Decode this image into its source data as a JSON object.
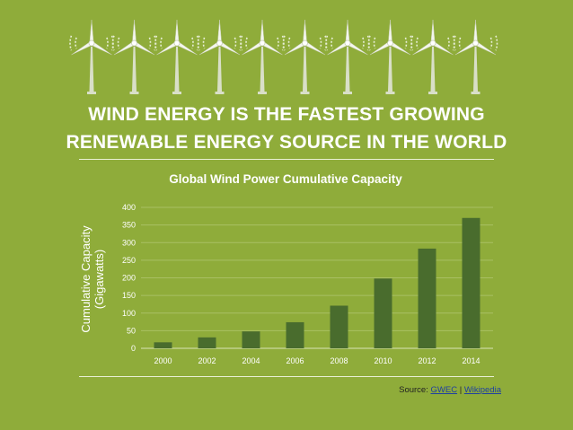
{
  "headline": {
    "line1": "WIND ENERGY IS THE FASTEST GROWING",
    "line2": "RENEWABLE ENERGY SOURCE IN THE WORLD"
  },
  "decoration": {
    "icon": "wind-turbine-icon",
    "count": 10
  },
  "colors": {
    "background": "#8fac3a",
    "bar": "#496c2d",
    "text": "#ffffff",
    "link": "#1f3fa0"
  },
  "chart_data": {
    "type": "bar",
    "title": "Global Wind Power Cumulative Capacity",
    "ylabel_line1": "Cumulative Capacity",
    "ylabel_line2": "(Gigawatts)",
    "xlabel": "",
    "categories": [
      "2000",
      "2002",
      "2004",
      "2006",
      "2008",
      "2010",
      "2012",
      "2014"
    ],
    "values": [
      17,
      31,
      48,
      74,
      121,
      198,
      283,
      370
    ],
    "ylim": [
      0,
      400
    ],
    "yticks": [
      0,
      50,
      100,
      150,
      200,
      250,
      300,
      350,
      400
    ],
    "grid": true,
    "legend": "none"
  },
  "source": {
    "prefix": "Source: ",
    "link1": "GWEC",
    "separator": " | ",
    "link2": "Wikipedia"
  }
}
